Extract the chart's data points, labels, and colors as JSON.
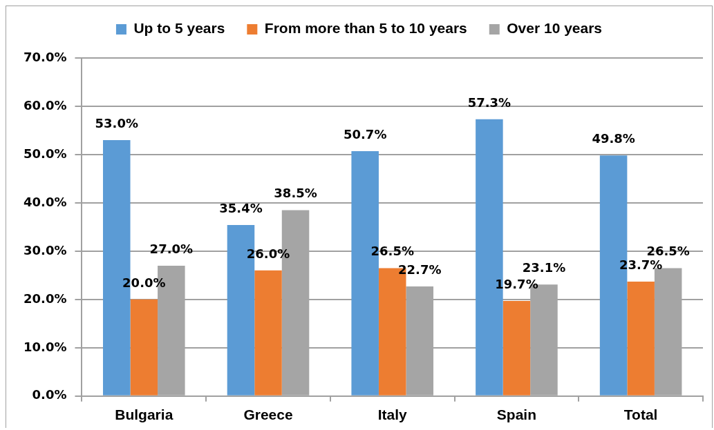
{
  "chart_data": {
    "type": "bar",
    "categories": [
      "Bulgaria",
      "Greece",
      "Italy",
      "Spain",
      "Total"
    ],
    "series": [
      {
        "name": "Up to 5 years",
        "color": "#5b9bd5",
        "values": [
          53.0,
          35.4,
          50.7,
          57.3,
          49.8
        ],
        "value_labels": [
          "53.0%",
          "35.4%",
          "50.7%",
          "57.3%",
          "49.8%"
        ]
      },
      {
        "name": "From more than 5 to 10 years",
        "color": "#ed7d31",
        "values": [
          20.0,
          26.0,
          26.5,
          19.7,
          23.7
        ],
        "value_labels": [
          "20.0%",
          "26.0%",
          "26.5%",
          "19.7%",
          "23.7%"
        ]
      },
      {
        "name": "Over 10 years",
        "color": "#a5a5a5",
        "values": [
          27.0,
          38.5,
          22.7,
          23.1,
          26.5
        ],
        "value_labels": [
          "27.0%",
          "38.5%",
          "22.7%",
          "23.1%",
          "26.5%"
        ]
      }
    ],
    "ylim": [
      0,
      70
    ],
    "yticks": [
      {
        "value": 0,
        "label": "0.0%"
      },
      {
        "value": 10,
        "label": "10.0%"
      },
      {
        "value": 20,
        "label": "20.0%"
      },
      {
        "value": 30,
        "label": "30.0%"
      },
      {
        "value": 40,
        "label": "40.0%"
      },
      {
        "value": 50,
        "label": "50.0%"
      },
      {
        "value": 60,
        "label": "60.0%"
      },
      {
        "value": 70,
        "label": "70.0%"
      }
    ],
    "grid": "y",
    "legend": "top"
  }
}
